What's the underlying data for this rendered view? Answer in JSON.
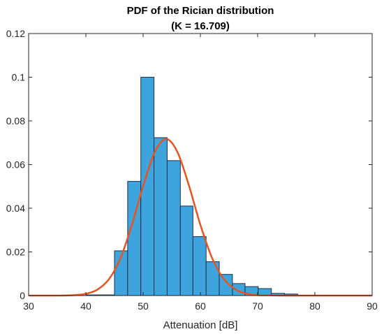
{
  "chart_data": {
    "type": "bar",
    "title": "PDF of the Rician distribution",
    "subtitle": "(K = 16.709)",
    "xlabel": "Attenuation [dB]",
    "ylabel": "",
    "xlim": [
      30,
      90
    ],
    "ylim": [
      0,
      0.12
    ],
    "xticks": [
      "30",
      "40",
      "50",
      "60",
      "70",
      "80",
      "90"
    ],
    "yticks": [
      "0",
      "0.02",
      "0.04",
      "0.06",
      "0.08",
      "0.1",
      "0.12"
    ],
    "grid": false,
    "legend": "none",
    "histogram": {
      "bin_edges": [
        40.0,
        42.8,
        45.0,
        47.3,
        49.6,
        51.9,
        54.2,
        56.5,
        58.7,
        61.0,
        63.3,
        65.6,
        67.8,
        70.1,
        72.4,
        74.7,
        77.0
      ],
      "values": [
        0.0003,
        0.0003,
        0.0205,
        0.0523,
        0.1,
        0.0723,
        0.0618,
        0.041,
        0.027,
        0.0155,
        0.0097,
        0.0055,
        0.0041,
        0.0032,
        0.001,
        0.0007
      ],
      "face_color": "#3DA4DD",
      "edge_color": "#1f2f4f"
    },
    "series": [
      {
        "type": "line",
        "x": [
          30,
          35,
          38,
          40,
          42,
          44,
          46,
          48,
          50,
          52,
          54,
          56,
          58,
          60,
          62,
          64,
          66,
          68,
          70,
          72,
          75,
          80,
          85,
          90
        ],
        "values": [
          0.0,
          0.0,
          0.0002,
          0.0008,
          0.0027,
          0.0074,
          0.0168,
          0.0321,
          0.0501,
          0.0655,
          0.0717,
          0.0657,
          0.0504,
          0.0324,
          0.0175,
          0.0079,
          0.003,
          0.0009,
          0.0002,
          0.0001,
          0.0,
          0.0,
          0.0,
          0.0
        ],
        "color": "#E8541E"
      }
    ]
  }
}
